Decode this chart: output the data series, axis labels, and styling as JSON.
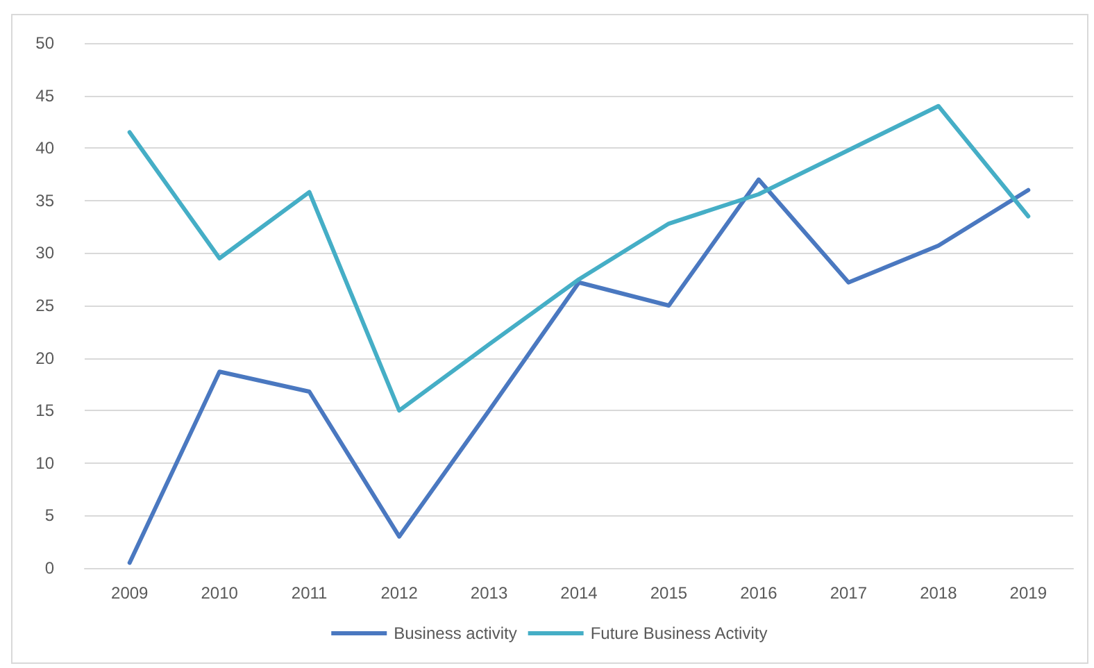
{
  "chart_data": {
    "type": "line",
    "categories": [
      "2009",
      "2010",
      "2011",
      "2012",
      "2013",
      "2014",
      "2015",
      "2016",
      "2017",
      "2018",
      "2019"
    ],
    "series": [
      {
        "name": "Business activity",
        "color": "#4a78c0",
        "values": [
          0.5,
          18.7,
          16.8,
          3,
          15,
          27.2,
          25,
          37,
          27.2,
          30.7,
          36
        ]
      },
      {
        "name": "Future Business Activity",
        "color": "#45aec6",
        "values": [
          41.5,
          29.5,
          35.8,
          15,
          21.3,
          27.5,
          32.8,
          35.6,
          39.8,
          44,
          33.5
        ]
      }
    ],
    "ylim": [
      0,
      50
    ],
    "yticks": [
      0,
      5,
      10,
      15,
      20,
      25,
      30,
      35,
      40,
      45,
      50
    ],
    "grid": "y",
    "legend": "bottom",
    "marker": "none",
    "line_style": "solid"
  }
}
